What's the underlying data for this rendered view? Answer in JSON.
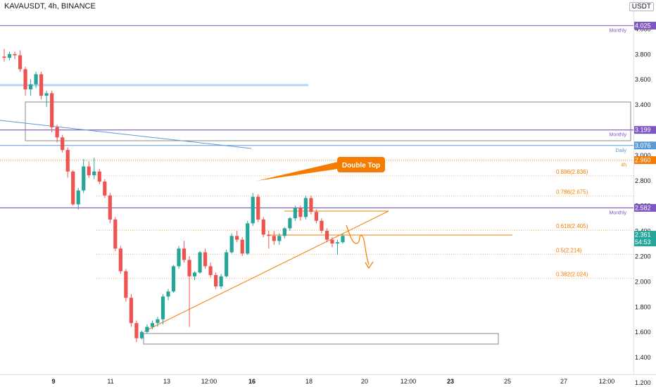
{
  "header": {
    "symbol": "KAVAUSDT, 4h, BINANCE",
    "currency": "USDT"
  },
  "chart_data": {
    "type": "candlestick",
    "ylim": [
      1.2,
      4.1
    ],
    "y_ticks": [
      "4.000",
      "3.800",
      "3.600",
      "3.400",
      "3.200",
      "3.000",
      "2.800",
      "2.600",
      "2.400",
      "2.200",
      "2.000",
      "1.800",
      "1.600",
      "1.400",
      "1.200"
    ],
    "x_ticks": [
      "9",
      "11",
      "13",
      "12:00",
      "16",
      "18",
      "20",
      "12:00",
      "23",
      "25",
      "27",
      "12:00"
    ],
    "price_tags": [
      {
        "value": 4.025,
        "label": "4.025",
        "color": "#7e57c2"
      },
      {
        "value": 3.199,
        "label": "3.199",
        "color": "#7e57c2"
      },
      {
        "value": 3.076,
        "label": "3.076",
        "color": "#5b9bd5"
      },
      {
        "value": 2.96,
        "label": "2.960",
        "color": "#f57c00"
      },
      {
        "value": 2.582,
        "label": "2.582",
        "color": "#7e57c2"
      },
      {
        "value": 2.361,
        "label": "2.361",
        "sublabel": "54:53",
        "color": "#26a69a"
      }
    ],
    "level_labels": [
      {
        "value": 4.025,
        "label": "Monthly",
        "color": "#7e57c2"
      },
      {
        "value": 3.199,
        "label": "Monthly",
        "color": "#7e57c2"
      },
      {
        "value": 3.076,
        "label": "Daily",
        "color": "#5b9bd5"
      },
      {
        "value": 2.96,
        "label": "4h",
        "color": "#f57c00"
      },
      {
        "value": 2.582,
        "label": "Monthly",
        "color": "#7e57c2"
      }
    ],
    "fib_levels": [
      {
        "ratio": 0.886,
        "value": 2.836,
        "label": "0.886(2.836)"
      },
      {
        "ratio": 0.786,
        "value": 2.675,
        "label": "0.786(2.675)"
      },
      {
        "ratio": 0.618,
        "value": 2.405,
        "label": "0.618(2.405)"
      },
      {
        "ratio": 0.5,
        "value": 2.214,
        "label": "0.5(2.214)"
      },
      {
        "ratio": 0.382,
        "value": 2.024,
        "label": "0.382(2.024)"
      }
    ],
    "annotations": [
      {
        "text": "Double Top",
        "color": "#f57c00"
      }
    ],
    "candles": [
      [
        3.78,
        3.84,
        3.74,
        3.77
      ],
      [
        3.77,
        3.82,
        3.75,
        3.8
      ],
      [
        3.8,
        3.82,
        3.76,
        3.79
      ],
      [
        3.79,
        3.83,
        3.66,
        3.68
      ],
      [
        3.68,
        3.7,
        3.47,
        3.52
      ],
      [
        3.52,
        3.6,
        3.47,
        3.56
      ],
      [
        3.56,
        3.66,
        3.53,
        3.64
      ],
      [
        3.64,
        3.66,
        3.44,
        3.47
      ],
      [
        3.47,
        3.51,
        3.38,
        3.49
      ],
      [
        3.49,
        3.51,
        3.18,
        3.22
      ],
      [
        3.22,
        3.24,
        3.1,
        3.14
      ],
      [
        3.14,
        3.16,
        3.02,
        3.04
      ],
      [
        3.04,
        3.06,
        2.82,
        2.87
      ],
      [
        2.87,
        2.88,
        2.6,
        2.61
      ],
      [
        2.61,
        2.74,
        2.57,
        2.72
      ],
      [
        2.72,
        2.97,
        2.7,
        2.91
      ],
      [
        2.91,
        2.95,
        2.82,
        2.84
      ],
      [
        2.84,
        2.98,
        2.81,
        2.87
      ],
      [
        2.87,
        2.89,
        2.77,
        2.79
      ],
      [
        2.79,
        2.81,
        2.66,
        2.68
      ],
      [
        2.68,
        2.7,
        2.46,
        2.49
      ],
      [
        2.49,
        2.51,
        2.24,
        2.26
      ],
      [
        2.26,
        2.28,
        2.06,
        2.08
      ],
      [
        2.08,
        2.1,
        1.84,
        1.87
      ],
      [
        1.87,
        1.9,
        1.64,
        1.67
      ],
      [
        1.67,
        1.69,
        1.52,
        1.55
      ],
      [
        1.55,
        1.61,
        1.54,
        1.6
      ],
      [
        1.6,
        1.66,
        1.59,
        1.64
      ],
      [
        1.64,
        1.69,
        1.62,
        1.67
      ],
      [
        1.67,
        1.72,
        1.64,
        1.7
      ],
      [
        1.7,
        1.9,
        1.66,
        1.88
      ],
      [
        1.88,
        1.94,
        1.85,
        1.92
      ],
      [
        1.92,
        2.13,
        1.91,
        2.12
      ],
      [
        2.12,
        2.28,
        2.1,
        2.26
      ],
      [
        2.26,
        2.32,
        2.15,
        2.17
      ],
      [
        2.17,
        2.2,
        1.64,
        2.04
      ],
      [
        2.04,
        2.08,
        2.01,
        2.07
      ],
      [
        2.07,
        2.24,
        2.06,
        2.23
      ],
      [
        2.23,
        2.26,
        2.1,
        2.12
      ],
      [
        2.12,
        2.15,
        2.03,
        2.05
      ],
      [
        2.05,
        2.07,
        1.94,
        1.96
      ],
      [
        1.96,
        2.06,
        1.94,
        2.04
      ],
      [
        2.04,
        2.25,
        2.03,
        2.23
      ],
      [
        2.23,
        2.38,
        2.22,
        2.36
      ],
      [
        2.36,
        2.4,
        2.31,
        2.33
      ],
      [
        2.33,
        2.35,
        2.2,
        2.22
      ],
      [
        2.22,
        2.48,
        2.21,
        2.46
      ],
      [
        2.46,
        2.7,
        2.44,
        2.67
      ],
      [
        2.67,
        2.69,
        2.47,
        2.49
      ],
      [
        2.49,
        2.51,
        2.35,
        2.37
      ],
      [
        2.37,
        2.4,
        2.26,
        2.36
      ],
      [
        2.36,
        2.4,
        2.29,
        2.32
      ],
      [
        2.32,
        2.38,
        2.29,
        2.36
      ],
      [
        2.36,
        2.43,
        2.34,
        2.42
      ],
      [
        2.42,
        2.51,
        2.4,
        2.5
      ],
      [
        2.5,
        2.6,
        2.48,
        2.58
      ],
      [
        2.58,
        2.6,
        2.48,
        2.51
      ],
      [
        2.51,
        2.68,
        2.49,
        2.66
      ],
      [
        2.66,
        2.68,
        2.53,
        2.55
      ],
      [
        2.55,
        2.57,
        2.46,
        2.48
      ],
      [
        2.48,
        2.5,
        2.38,
        2.4
      ],
      [
        2.4,
        2.42,
        2.31,
        2.33
      ],
      [
        2.33,
        2.35,
        2.27,
        2.3
      ],
      [
        2.3,
        2.33,
        2.21,
        2.31
      ],
      [
        2.31,
        2.38,
        2.3,
        2.36
      ]
    ]
  }
}
